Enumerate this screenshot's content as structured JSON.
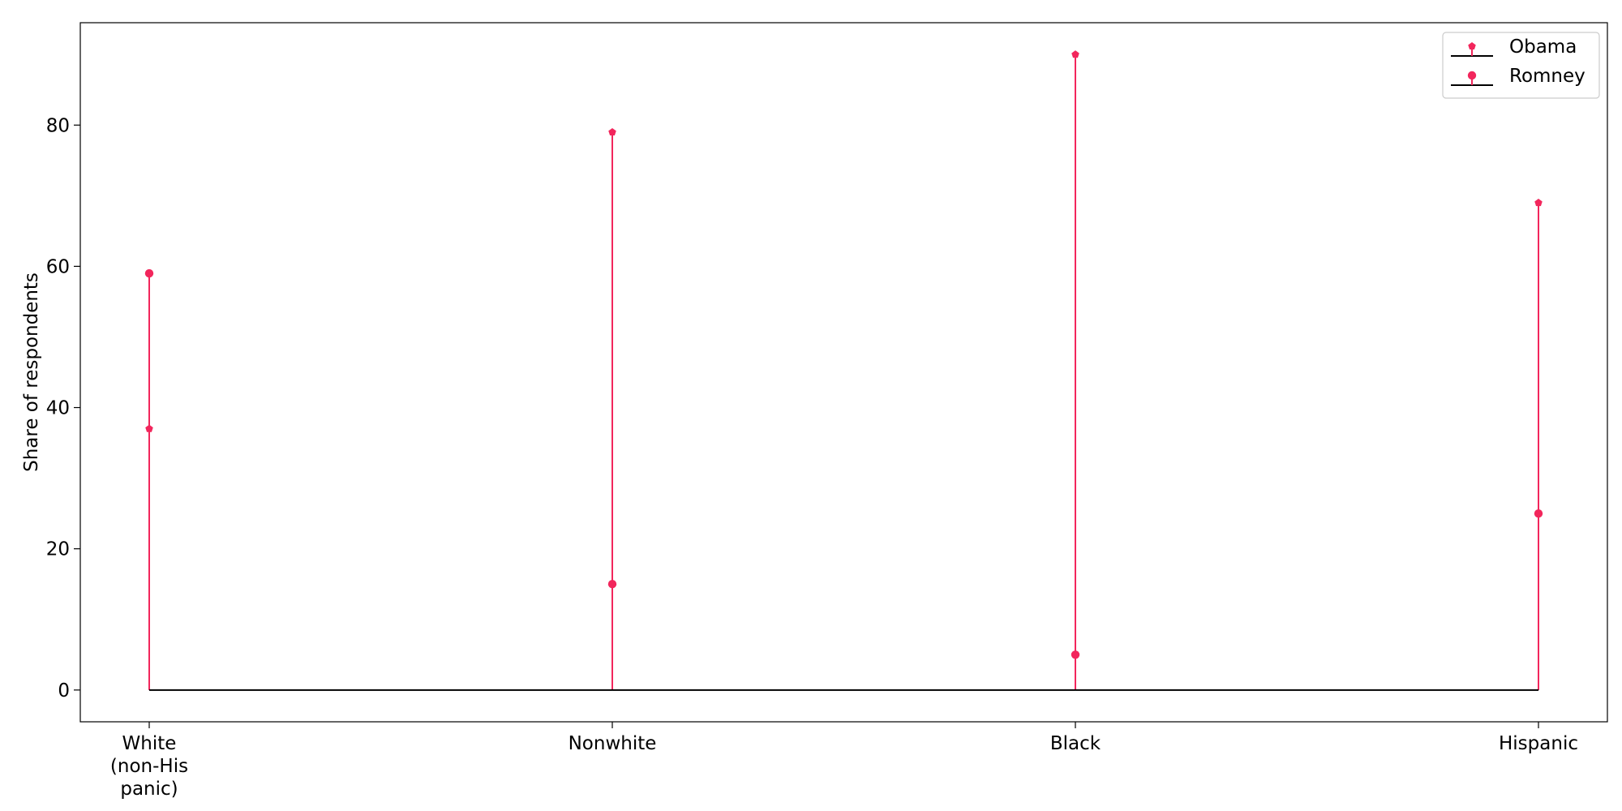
{
  "chart_data": {
    "type": "lollipop",
    "title": "",
    "xlabel": "",
    "ylabel": "Share of respondents",
    "categories": [
      "White\n(non-His\npanic)",
      "Nonwhite",
      "Black",
      "Hispanic"
    ],
    "series": [
      {
        "name": "Obama",
        "marker": "pentagon",
        "values": [
          37,
          79,
          90,
          69
        ]
      },
      {
        "name": "Romney",
        "marker": "circle",
        "values": [
          59,
          15,
          5,
          25
        ]
      }
    ],
    "ylim": [
      -4.5,
      94.5
    ],
    "yticks": [
      0,
      20,
      40,
      60,
      80
    ],
    "baseline": 0,
    "grid": false,
    "legend_position": "top-right",
    "colors": {
      "stem": "#f2265c",
      "marker": "#f2265c",
      "baseline": "#000000",
      "axes": "#000000",
      "legend_border": "#cccccc"
    }
  }
}
